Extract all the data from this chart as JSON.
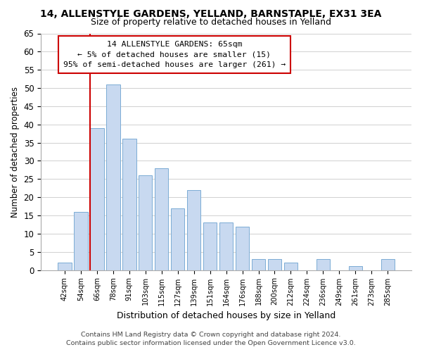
{
  "title": "14, ALLENSTYLE GARDENS, YELLAND, BARNSTAPLE, EX31 3EA",
  "subtitle": "Size of property relative to detached houses in Yelland",
  "xlabel": "Distribution of detached houses by size in Yelland",
  "ylabel": "Number of detached properties",
  "bar_labels": [
    "42sqm",
    "54sqm",
    "66sqm",
    "78sqm",
    "91sqm",
    "103sqm",
    "115sqm",
    "127sqm",
    "139sqm",
    "151sqm",
    "164sqm",
    "176sqm",
    "188sqm",
    "200sqm",
    "212sqm",
    "224sqm",
    "236sqm",
    "249sqm",
    "261sqm",
    "273sqm",
    "285sqm"
  ],
  "bar_values": [
    2,
    16,
    39,
    51,
    36,
    26,
    28,
    17,
    22,
    13,
    13,
    12,
    3,
    3,
    2,
    0,
    3,
    0,
    1,
    0,
    3
  ],
  "bar_color": "#c8d9f0",
  "bar_edge_color": "#7bacd4",
  "highlight_bar_index": 2,
  "highlight_color": "#cc0000",
  "ylim": [
    0,
    65
  ],
  "yticks": [
    0,
    5,
    10,
    15,
    20,
    25,
    30,
    35,
    40,
    45,
    50,
    55,
    60,
    65
  ],
  "annotation_title": "14 ALLENSTYLE GARDENS: 65sqm",
  "annotation_line1": "← 5% of detached houses are smaller (15)",
  "annotation_line2": "95% of semi-detached houses are larger (261) →",
  "footer_line1": "Contains HM Land Registry data © Crown copyright and database right 2024.",
  "footer_line2": "Contains public sector information licensed under the Open Government Licence v3.0.",
  "background_color": "#ffffff",
  "grid_color": "#d0d0d0"
}
